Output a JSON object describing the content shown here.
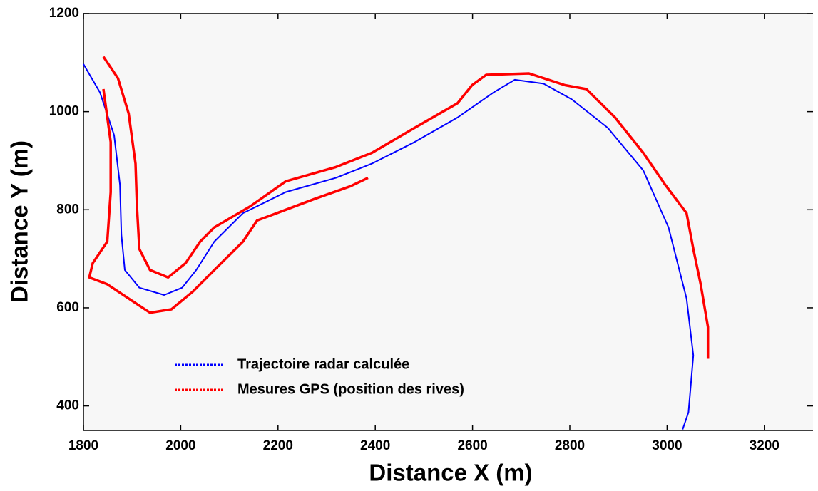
{
  "chart_data": {
    "type": "line",
    "xlabel": "Distance X (m)",
    "ylabel": "Distance Y (m)",
    "xlim": [
      1800,
      3300
    ],
    "ylim": [
      350,
      1200
    ],
    "xticks": [
      1800,
      2000,
      2200,
      2400,
      2600,
      2800,
      3000,
      3200
    ],
    "yticks": [
      400,
      600,
      800,
      1000,
      1200
    ],
    "series": [
      {
        "name": "Trajectoire radar calculée",
        "color": "#0000ff",
        "x": [
          1800,
          1834,
          1863,
          1875,
          1878,
          1885,
          1915,
          1966,
          2003,
          2032,
          2069,
          2128,
          2216,
          2319,
          2393,
          2481,
          2569,
          2643,
          2687,
          2746,
          2804,
          2878,
          2951,
          3003,
          3040,
          3054,
          3044,
          3032
        ],
        "values": [
          1097,
          1039,
          952,
          851,
          749,
          677,
          641,
          626,
          641,
          677,
          735,
          793,
          836,
          865,
          894,
          938,
          988,
          1039,
          1065,
          1057,
          1025,
          967,
          880,
          764,
          619,
          503,
          387,
          352
        ]
      },
      {
        "name": "Mesures GPS (position des rives)",
        "color": "#ff0000",
        "x": [
          1841,
          1871,
          1893,
          1907,
          1910,
          1915,
          1937,
          1974,
          2010,
          2040,
          2069,
          2143,
          2216,
          2319,
          2393,
          2481,
          2569,
          2599,
          2628,
          2716,
          2790,
          2834,
          2893,
          2951,
          2996,
          3040,
          3054,
          3069,
          3084,
          3084,
          null,
          1841,
          1856,
          1856,
          1849,
          1819,
          1812,
          1849,
          1893,
          1937,
          1981,
          2025,
          2069,
          2128,
          2157,
          2216,
          2275,
          2349,
          2385
        ],
        "values": [
          1112,
          1068,
          996,
          894,
          807,
          720,
          677,
          662,
          691,
          735,
          764,
          807,
          858,
          887,
          916,
          967,
          1017,
          1054,
          1075,
          1078,
          1054,
          1046,
          988,
          916,
          851,
          793,
          720,
          648,
          561,
          496,
          null,
          1046,
          938,
          836,
          735,
          691,
          662,
          648,
          619,
          590,
          597,
          633,
          677,
          735,
          778,
          800,
          822,
          848,
          865
        ]
      }
    ]
  }
}
